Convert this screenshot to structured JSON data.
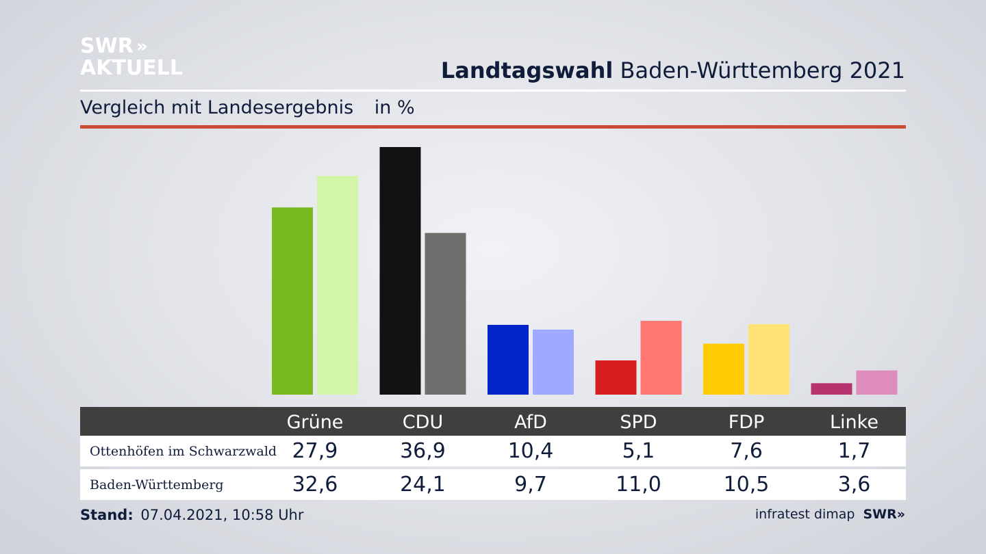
{
  "logo": {
    "line1": "SWR",
    "chevrons": "»",
    "line2": "AKTUELL"
  },
  "header": {
    "title_bold": "Landtagswahl",
    "title_rest": "Baden-Württemberg 2021",
    "subtitle": "Vergleich mit Landesergebnis",
    "unit": "in %"
  },
  "chart_data": {
    "type": "bar",
    "categories": [
      "Grüne",
      "CDU",
      "AfD",
      "SPD",
      "FDP",
      "Linke"
    ],
    "series": [
      {
        "name": "Ottenhöfen im Schwarzwald",
        "values": [
          27.9,
          36.9,
          10.4,
          5.1,
          7.6,
          1.7
        ],
        "display": [
          "27,9",
          "36,9",
          "10,4",
          "5,1",
          "7,6",
          "1,7"
        ]
      },
      {
        "name": "Baden-Württemberg",
        "values": [
          32.6,
          24.1,
          9.7,
          11.0,
          10.5,
          3.6
        ],
        "display": [
          "32,6",
          "24,1",
          "9,7",
          "11,0",
          "10,5",
          "3,6"
        ]
      }
    ],
    "colors": {
      "local": [
        "#77bb1e",
        "#121212",
        "#0224c9",
        "#d71e20",
        "#ffcb05",
        "#b8326f"
      ],
      "state": [
        "#d3f5a7",
        "#6f6e6d",
        "#9eaaff",
        "#ff7770",
        "#ffe273",
        "#de8cbb"
      ]
    },
    "ylim": [
      0,
      36.9
    ],
    "grid": false
  },
  "footer": {
    "stand_label": "Stand:",
    "stand_value": "07.04.2021, 10:58 Uhr",
    "source": "infratest dimap",
    "brand": "SWR»"
  }
}
